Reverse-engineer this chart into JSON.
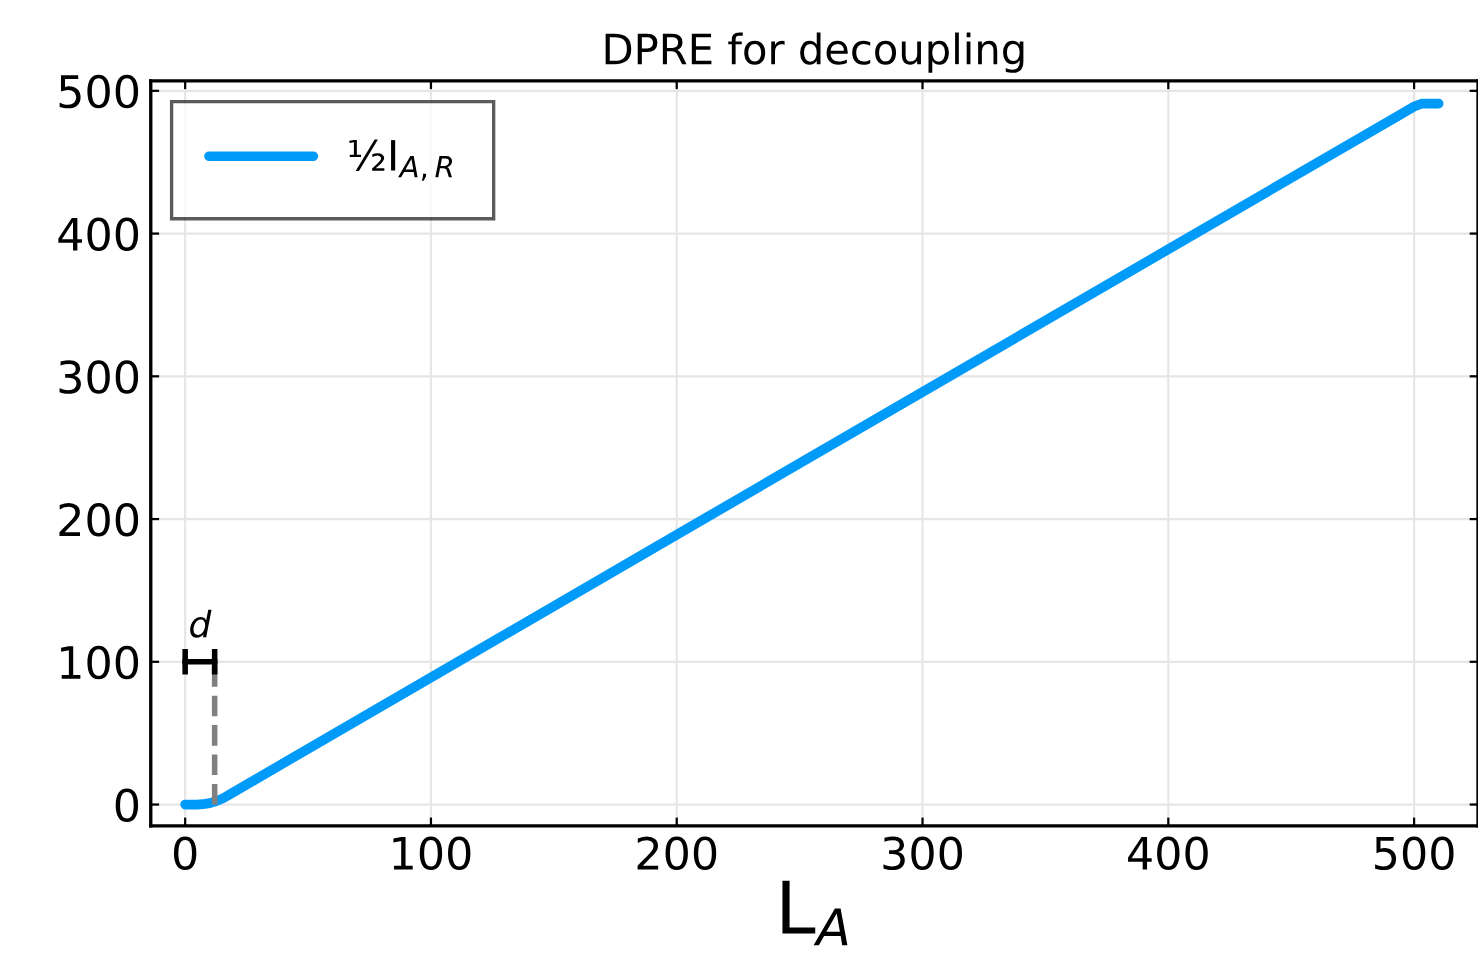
{
  "chart_data": {
    "type": "line",
    "title": "DPRE for decoupling",
    "xlabel": "L$_{A}$",
    "xlim": [
      -14,
      526
    ],
    "ylim": [
      -15,
      507
    ],
    "xticks": [
      0,
      100,
      200,
      300,
      400,
      500
    ],
    "yticks": [
      0,
      100,
      200,
      300,
      400,
      500
    ],
    "grid": true,
    "legend": "top left",
    "series": [
      {
        "name": "½I$_{A,R}$",
        "color": "#009af9",
        "x": [
          0,
          5,
          8,
          10,
          12,
          15,
          20,
          100,
          200,
          300,
          400,
          495,
          500,
          503,
          510
        ],
        "values": [
          0,
          0,
          0.5,
          1,
          2,
          4,
          9,
          89,
          189,
          289,
          389,
          484,
          489,
          491,
          491
        ]
      }
    ],
    "ref_lines": [
      {
        "axis": "x",
        "value": 12,
        "label": "d",
        "color": "#808080",
        "line_style": "dashed"
      }
    ]
  }
}
